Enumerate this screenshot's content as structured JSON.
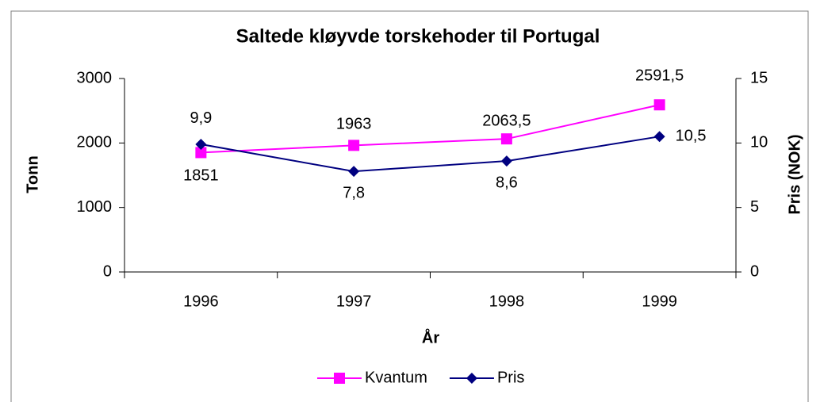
{
  "chart_data": {
    "type": "line",
    "title": "Saltede kløyvde torskehoder til Portugal",
    "x_label": "År",
    "y_label": "Tonn",
    "y2_label": "Pris (NOK)",
    "categories": [
      "1996",
      "1997",
      "1998",
      "1999"
    ],
    "series": [
      {
        "name": "Kvantum",
        "color": "#ff00ff",
        "marker": "square",
        "values": [
          1851,
          1963,
          2063.5,
          2591.5
        ],
        "value_labels": [
          "1851",
          "1963",
          "2063,5",
          "2591,5"
        ]
      },
      {
        "name": "Pris",
        "color": "#000080",
        "marker": "diamond",
        "axis": "y2",
        "values": [
          9.9,
          7.8,
          8.6,
          10.5
        ],
        "value_labels": [
          "9,9",
          "7,8",
          "8,6",
          "10,5"
        ]
      }
    ],
    "ylim": [
      0,
      3000
    ],
    "yticks": [
      0,
      1000,
      2000,
      3000
    ],
    "y2lim": [
      0,
      15
    ],
    "y2ticks": [
      0,
      5,
      10,
      15
    ],
    "legend": "bottom"
  }
}
